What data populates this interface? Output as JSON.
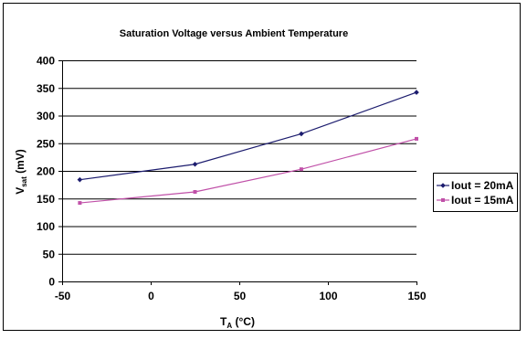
{
  "chart_data": {
    "type": "line",
    "title": "Saturation Voltage versus Ambient Temperature",
    "xlabel": {
      "main": "T",
      "sub": "A",
      "rest": " (°C)"
    },
    "ylabel": {
      "main": "V",
      "sub": "sat",
      "rest": " (mV)"
    },
    "xlim": [
      -50,
      150
    ],
    "ylim": [
      0,
      400
    ],
    "xticks": [
      -50,
      0,
      50,
      100,
      150
    ],
    "yticks": [
      0,
      50,
      100,
      150,
      200,
      250,
      300,
      350,
      400
    ],
    "grid": "horizontal",
    "legend_position": "right",
    "series": [
      {
        "name": "Iout = 20mA",
        "color": "#1c1c6e",
        "marker": "diamond",
        "points": [
          [
            -40,
            184
          ],
          [
            25,
            212
          ],
          [
            85,
            267
          ],
          [
            150,
            342
          ]
        ]
      },
      {
        "name": "Iout = 15mA",
        "color": "#c050a8",
        "marker": "square",
        "points": [
          [
            -40,
            142
          ],
          [
            25,
            162
          ],
          [
            85,
            203
          ],
          [
            150,
            258
          ]
        ]
      }
    ]
  }
}
